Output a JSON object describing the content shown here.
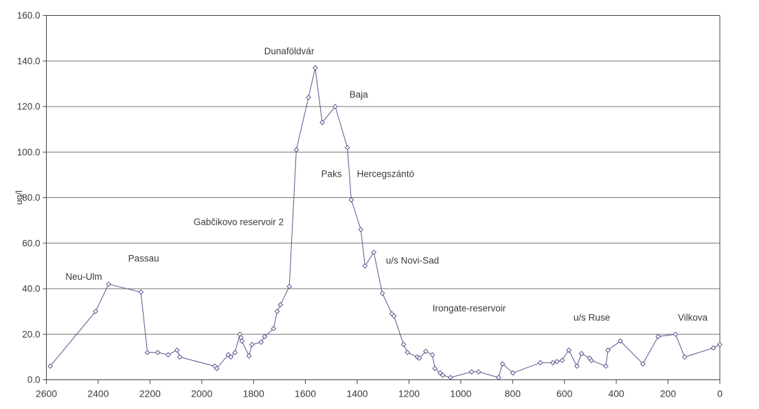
{
  "chart": {
    "y_axis_title": "ug/l",
    "colors": {
      "series": "#54548c",
      "marker_fill": "#ffffff",
      "grid": "#707070",
      "frame": "#404040",
      "text": "#3a3a3a"
    }
  },
  "chart_data": {
    "type": "line",
    "title": "",
    "xlabel": "",
    "ylabel": "ug/l",
    "legend": "none",
    "grid": "horizontal",
    "marker": "open-diamond",
    "x_axis": {
      "min": 0,
      "max": 2600,
      "reversed": true,
      "tick_step": 200,
      "ticks": [
        2600,
        2400,
        2200,
        2000,
        1800,
        1600,
        1400,
        1200,
        1000,
        800,
        600,
        400,
        200,
        0
      ]
    },
    "y_axis": {
      "min": 0,
      "max": 160,
      "tick_step": 20,
      "ticks": [
        0,
        20,
        40,
        60,
        80,
        100,
        120,
        140,
        160
      ],
      "tick_decimals": 1
    },
    "points": [
      [
        2585,
        6
      ],
      [
        2410,
        30
      ],
      [
        2360,
        42
      ],
      [
        2235,
        38.5
      ],
      [
        2210,
        12
      ],
      [
        2170,
        12
      ],
      [
        2130,
        11
      ],
      [
        2095,
        13
      ],
      [
        2085,
        10
      ],
      [
        1950,
        6
      ],
      [
        1942,
        5
      ],
      [
        1898,
        11
      ],
      [
        1888,
        10
      ],
      [
        1872,
        12
      ],
      [
        1853,
        20
      ],
      [
        1849,
        18.5
      ],
      [
        1845,
        17
      ],
      [
        1818,
        10.5
      ],
      [
        1806,
        15.5
      ],
      [
        1771,
        16.5
      ],
      [
        1757,
        19
      ],
      [
        1723,
        22.5
      ],
      [
        1709,
        30
      ],
      [
        1696,
        33
      ],
      [
        1662,
        41
      ],
      [
        1635,
        101
      ],
      [
        1588,
        124
      ],
      [
        1562,
        137
      ],
      [
        1535,
        113
      ],
      [
        1485,
        120
      ],
      [
        1438,
        102
      ],
      [
        1423,
        79
      ],
      [
        1386,
        66
      ],
      [
        1370,
        50
      ],
      [
        1336,
        56
      ],
      [
        1303,
        38
      ],
      [
        1266,
        29
      ],
      [
        1258,
        28
      ],
      [
        1221,
        15.5
      ],
      [
        1206,
        12
      ],
      [
        1168,
        10
      ],
      [
        1160,
        9.5
      ],
      [
        1135,
        12.5
      ],
      [
        1110,
        11
      ],
      [
        1100,
        5
      ],
      [
        1080,
        3
      ],
      [
        1070,
        2
      ],
      [
        1040,
        1
      ],
      [
        958,
        3.5
      ],
      [
        932,
        3.5
      ],
      [
        854,
        1
      ],
      [
        839,
        7
      ],
      [
        799,
        3
      ],
      [
        693,
        7.5
      ],
      [
        645,
        7.5
      ],
      [
        629,
        8
      ],
      [
        609,
        8.5
      ],
      [
        583,
        13
      ],
      [
        552,
        6
      ],
      [
        534,
        11.5
      ],
      [
        503,
        9.5
      ],
      [
        496,
        8.5
      ],
      [
        440,
        6
      ],
      [
        432,
        13
      ],
      [
        384,
        17
      ],
      [
        297,
        7
      ],
      [
        238,
        19
      ],
      [
        171,
        20
      ],
      [
        136,
        10
      ],
      [
        25,
        14
      ],
      [
        0,
        15.5
      ]
    ],
    "annotations": [
      {
        "label": "Neu-Ulm",
        "x": 2526,
        "y": 44
      },
      {
        "label": "Passau",
        "x": 2284,
        "y": 52
      },
      {
        "label": "Gabčikovo reservoir 2",
        "x": 2032,
        "y": 68
      },
      {
        "label": "Dunaföldvár",
        "x": 1759,
        "y": 143
      },
      {
        "label": "Baja",
        "x": 1430,
        "y": 124
      },
      {
        "label": "Paks",
        "x": 1539,
        "y": 89
      },
      {
        "label": "Hercegszántó",
        "x": 1401,
        "y": 89
      },
      {
        "label": "u/s Novi-Sad",
        "x": 1289,
        "y": 51
      },
      {
        "label": "Irongate-reservoir",
        "x": 1109,
        "y": 30
      },
      {
        "label": "u/s Ruse",
        "x": 565,
        "y": 26
      },
      {
        "label": "Vilkova",
        "x": 162,
        "y": 26
      }
    ]
  }
}
